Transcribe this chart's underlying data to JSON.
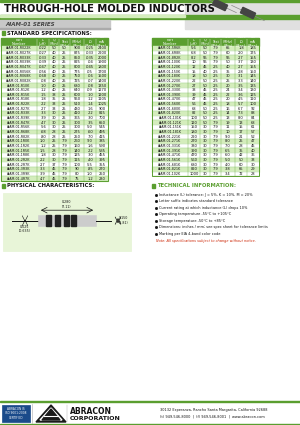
{
  "title": "THROUGH-HOLE MOLDED INDUCTORS",
  "subtitle": "AIAM-01 SERIES",
  "green": "#5a9e2f",
  "light_green": "#d4edbc",
  "white": "#ffffff",
  "black": "#111111",
  "gray_bg": "#e8e8e8",
  "table_alt": "#dff0d0",
  "left_rows": [
    [
      "AIAM-01-R022K",
      ".022",
      "50",
      "50",
      "900",
      ".025",
      "2400"
    ],
    [
      "AIAM-01-R027K",
      ".027",
      "40",
      "25",
      "875",
      ".033",
      "2200"
    ],
    [
      "AIAM-01-R033K",
      ".033",
      "40",
      "25",
      "850",
      ".035",
      "2000"
    ],
    [
      "AIAM-01-R039K",
      ".039",
      "40",
      "25",
      "825",
      ".04",
      "1900"
    ],
    [
      "AIAM-01-R047K",
      ".047",
      "40",
      "25",
      "800",
      ".045",
      "1800"
    ],
    [
      "AIAM-01-R056K",
      ".056",
      "40",
      "25",
      "775",
      ".05",
      "1700"
    ],
    [
      "AIAM-01-R068K",
      ".068",
      "40",
      "25",
      "750",
      ".06",
      "1500"
    ],
    [
      "AIAM-01-R082K",
      ".08",
      "40",
      "25",
      "725",
      ".07",
      "1400"
    ],
    [
      "AIAM-01-R10K",
      ".10",
      "40",
      "25",
      "680",
      ".08",
      "1350"
    ],
    [
      "AIAM-01-R12K",
      ".12",
      "40",
      "25",
      "640",
      ".09",
      "1270"
    ],
    [
      "AIAM-01-R15K",
      ".15",
      "38",
      "25",
      "600",
      ".10",
      "1200"
    ],
    [
      "AIAM-01-R18K",
      ".18",
      "35",
      "25",
      "550",
      ".12",
      "1105"
    ],
    [
      "AIAM-01-R22K",
      ".22",
      "33",
      "25",
      "510",
      ".14",
      "1025"
    ],
    [
      "AIAM-01-R27K",
      ".27",
      "33",
      "25",
      "430",
      ".16",
      "900"
    ],
    [
      "AIAM-01-R33K",
      ".33",
      "30",
      "25",
      "410",
      ".22",
      "815"
    ],
    [
      "AIAM-01-R39K",
      ".39",
      "30",
      "25",
      "365",
      ".30",
      "700"
    ],
    [
      "AIAM-01-R47K",
      ".47",
      "30",
      "25",
      "300",
      ".35",
      "650"
    ],
    [
      "AIAM-01-R56K",
      ".56",
      "30",
      "25",
      "300",
      ".50",
      "545"
    ],
    [
      "AIAM-01-R68K",
      ".68",
      "28",
      "25",
      "275",
      ".60",
      "495"
    ],
    [
      "AIAM-01-R82K",
      ".80",
      "28",
      "25",
      "250",
      ".70",
      "415"
    ],
    [
      "AIAM-01-1R0K",
      "1.0",
      "25",
      "7.9",
      "260",
      ".90",
      "385"
    ],
    [
      "AIAM-01-1R2K",
      "1.2",
      "25",
      "7.9",
      "160",
      "1.6",
      "590"
    ],
    [
      "AIAM-01-1R5K",
      "1.5",
      "28",
      "7.9",
      "140",
      ".22",
      "535"
    ],
    [
      "AIAM-01-1R8K",
      "1.8",
      "30",
      "7.9",
      "125",
      ".30",
      "455"
    ],
    [
      "AIAM-01-2R2K",
      "2.2",
      "30",
      "7.9",
      "115",
      ".40",
      "395"
    ],
    [
      "AIAM-01-2R7K",
      "2.7",
      "37",
      "7.9",
      "100",
      ".55",
      "355"
    ],
    [
      "AIAM-01-3R3K",
      "3.3",
      "45",
      "7.9",
      "90",
      ".85",
      "270"
    ],
    [
      "AIAM-01-3R9K",
      "3.9",
      "45",
      "7.9",
      "80",
      "1.0",
      "250"
    ],
    [
      "AIAM-01-4R7K",
      "4.7",
      "45",
      "7.9",
      "75",
      "1.2",
      "230"
    ]
  ],
  "right_rows": [
    [
      "AIAM-01-5R6K",
      "5.6",
      "50",
      "7.9",
      "65",
      "1.8",
      "185"
    ],
    [
      "AIAM-01-6R8K",
      "6.8",
      "50",
      "7.9",
      "60",
      "2.0",
      "175"
    ],
    [
      "AIAM-01-8R2K",
      "8.2",
      "55",
      "7.9",
      "55",
      "2.7",
      "155"
    ],
    [
      "AIAM-01-100K",
      "10",
      "55",
      "7.9",
      "50",
      "3.7",
      "130"
    ],
    [
      "AIAM-01-120K",
      "12",
      "45",
      "2.5",
      "40",
      "2.7",
      "155"
    ],
    [
      "AIAM-01-150K",
      "15",
      "40",
      "2.5",
      "35",
      "2.8",
      "150"
    ],
    [
      "AIAM-01-180K",
      "18",
      "50",
      "2.5",
      "30",
      "3.1",
      "145"
    ],
    [
      "AIAM-01-220K",
      "22",
      "50",
      "2.5",
      "25",
      "3.3",
      "140"
    ],
    [
      "AIAM-01-270K",
      "27",
      "50",
      "2.5",
      "20",
      "3.5",
      "135"
    ],
    [
      "AIAM-01-330K",
      "33",
      "45",
      "2.5",
      "24",
      "3.4",
      "130"
    ],
    [
      "AIAM-01-390K",
      "39",
      "45",
      "2.5",
      "22",
      "3.6",
      "125"
    ],
    [
      "AIAM-01-470K",
      "47",
      "45",
      "2.5",
      "20",
      "4.5",
      "110"
    ],
    [
      "AIAM-01-560K",
      "56",
      "45",
      "2.5",
      "18",
      "5.7",
      "100"
    ],
    [
      "AIAM-01-680K",
      "68",
      "50",
      "2.5",
      "16",
      "6.7",
      "92"
    ],
    [
      "AIAM-01-820K",
      "82",
      "50",
      "2.5",
      "14",
      "7.3",
      "88"
    ],
    [
      "AIAM-01-101K",
      "100",
      "50",
      "2.5",
      "13",
      "8.0",
      "84"
    ],
    [
      "AIAM-01-121K",
      "120",
      "50",
      "7.9",
      "19",
      "13",
      "68"
    ],
    [
      "AIAM-01-151K",
      "150",
      "30",
      "7.9",
      "11",
      "15",
      "61"
    ],
    [
      "AIAM-01-181K",
      "180",
      "30",
      "7.9",
      "10",
      "17",
      "57"
    ],
    [
      "AIAM-01-221K",
      "220",
      "30",
      "7.9",
      "9.0",
      "21",
      "52"
    ],
    [
      "AIAM-01-271K",
      "270",
      "30",
      "7.9",
      "8.0",
      "25",
      "47"
    ],
    [
      "AIAM-01-331K",
      "330",
      "30",
      "7.9",
      "7.0",
      "28",
      "45"
    ],
    [
      "AIAM-01-391K",
      "390",
      "30",
      "7.9",
      "6.5",
      "35",
      "40"
    ],
    [
      "AIAM-01-471K",
      "470",
      "30",
      "7.9",
      "6.0",
      "42",
      "36"
    ],
    [
      "AIAM-01-561K",
      "560",
      "30",
      "7.9",
      "5.0",
      "50",
      "33"
    ],
    [
      "AIAM-01-681K",
      "680",
      "30",
      "7.9",
      "4.0",
      "60",
      "30"
    ],
    [
      "AIAM-01-821K",
      "820",
      "30",
      "7.9",
      "3.8",
      "65",
      "29"
    ],
    [
      "AIAM-01-102K",
      "1000",
      "30",
      "7.9",
      "3.4",
      "72",
      "28"
    ]
  ],
  "col_headers": [
    "Part\nNumber",
    "L\n(μH)",
    "Q\n(Min)",
    "L\nTest\n(MHz)",
    "SRF\n(MHz)\n(Min)",
    "DCR\nΩ\n(Max)",
    "Ioc\nmA\n(Max)"
  ],
  "technical_bullets": [
    "Inductance (L) tolerance: J = 5%, K = 10%, M = 20%",
    "Letter suffix indicates standard tolerance",
    "Current rating at which inductance (L) drops 10%",
    "Operating temperature -55°C to +105°C",
    "Storage temperature -50°C to +85°C",
    "Dimensions: inches / mm; see spec sheet for tolerance limits",
    "Marking per EIA 4-band color code"
  ],
  "technical_note": "Note: All specifications subject to change without notice.",
  "footer_address": "30132 Esperanza, Rancho Santa Margarita, California 92688",
  "footer_phone": "(t) 949-546-8000  |  (f) 949-546-8001  |  www.abracon.com"
}
